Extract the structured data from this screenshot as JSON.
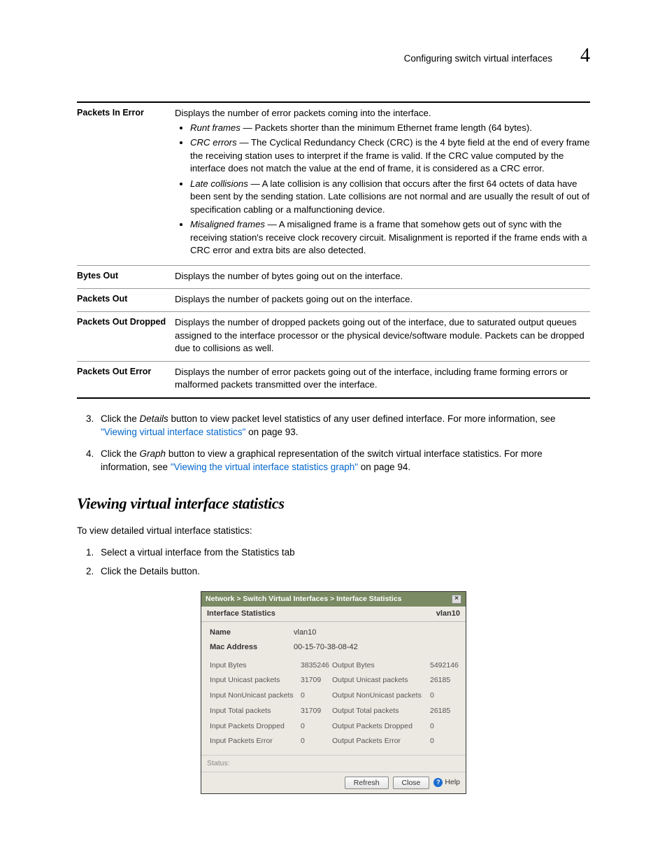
{
  "header": {
    "title": "Configuring switch virtual interfaces",
    "chapter": "4"
  },
  "table_rows": [
    {
      "label": "Packets In Error",
      "lead": "Displays the number of error packets coming into the interface.",
      "bullets": [
        {
          "term": "Runt frames",
          "text": " — Packets shorter than the minimum Ethernet frame length (64 bytes)."
        },
        {
          "term": "CRC errors",
          "text": " — The Cyclical Redundancy Check (CRC) is the 4 byte field at the end of every frame the receiving station uses to interpret if the frame is valid. If the CRC value computed by the interface does not match the value at the end of frame, it is considered as a CRC error."
        },
        {
          "term": "Late collisions",
          "text": " — A late collision is any collision that occurs after the first 64 octets of data have been sent by the sending station. Late collisions are not normal and are usually the result of out of specification cabling or a malfunctioning device."
        },
        {
          "term": "Misaligned frames",
          "text": " — A misaligned frame is a frame that somehow gets out of sync with the receiving station's receive clock recovery circuit. Misalignment is reported if the frame ends with a CRC error and extra bits are also detected."
        }
      ]
    },
    {
      "label": "Bytes Out",
      "lead": "Displays the number of bytes going out on the interface."
    },
    {
      "label": "Packets Out",
      "lead": "Displays the number of packets going out on the interface."
    },
    {
      "label": "Packets Out Dropped",
      "lead": "Displays the number of dropped packets going out of the interface, due to saturated output queues assigned to the interface processor or the physical device/software module. Packets can be dropped due to collisions as well."
    },
    {
      "label": "Packets Out Error",
      "lead": "Displays the number of error packets going out of the interface, including frame forming errors or malformed packets transmitted over the interface."
    }
  ],
  "steps_main": {
    "s3_a": "Click the ",
    "s3_ital": "Details",
    "s3_b": " button to view packet level statistics of any user defined interface. For more information, see ",
    "s3_link": "\"Viewing virtual interface statistics\"",
    "s3_c": " on page 93.",
    "s4_a": "Click the ",
    "s4_ital": "Graph",
    "s4_b": " button to view a graphical representation of the switch virtual interface statistics. For more information, see ",
    "s4_link": "\"Viewing the virtual interface statistics graph\"",
    "s4_c": " on page 94."
  },
  "section": {
    "heading": "Viewing virtual interface statistics",
    "intro": "To view detailed virtual interface statistics:",
    "s1_a": "Select a virtual interface from the ",
    "s1_ital": "Statistics",
    "s1_b": " tab",
    "s2_a": "Click the ",
    "s2_ital": "Details",
    "s2_b": " button."
  },
  "dialog": {
    "breadcrumb": "Network > Switch Virtual Interfaces > Interface Statistics",
    "subhead_left": "Interface Statistics",
    "subhead_right": "vlan10",
    "name_label": "Name",
    "name_value": "vlan10",
    "mac_label": "Mac Address",
    "mac_value": "00-15-70-38-08-42",
    "stats": [
      {
        "l1": "Input Bytes",
        "v1": "3835246",
        "l2": "Output Bytes",
        "v2": "5492146"
      },
      {
        "l1": "Input Unicast packets",
        "v1": "31709",
        "l2": "Output Unicast packets",
        "v2": "26185"
      },
      {
        "l1": "Input NonUnicast packets",
        "v1": "0",
        "l2": "Output NonUnicast packets",
        "v2": "0"
      },
      {
        "l1": "Input Total packets",
        "v1": "31709",
        "l2": "Output Total packets",
        "v2": "26185"
      },
      {
        "l1": "Input Packets Dropped",
        "v1": "0",
        "l2": "Output Packets Dropped",
        "v2": "0"
      },
      {
        "l1": "Input Packets Error",
        "v1": "0",
        "l2": "Output Packets Error",
        "v2": "0"
      }
    ],
    "status_label": "Status:",
    "refresh": "Refresh",
    "close": "Close",
    "help": "Help"
  }
}
